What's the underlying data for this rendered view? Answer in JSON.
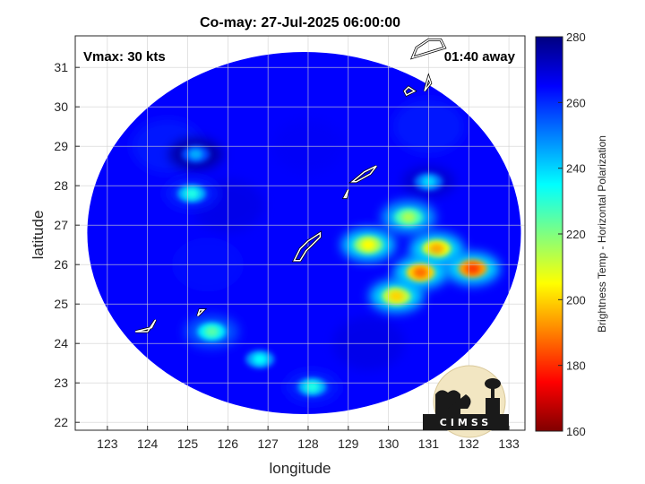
{
  "chart_data": {
    "type": "heatmap",
    "title": "Co-may: 27-Jul-2025 06:00:00",
    "xlabel": "longitude",
    "ylabel": "latitude",
    "xlim": [
      122.2,
      133.4
    ],
    "ylim": [
      21.8,
      31.8
    ],
    "xticks": [
      123,
      124,
      125,
      126,
      127,
      128,
      129,
      130,
      131,
      132,
      133
    ],
    "yticks": [
      22,
      23,
      24,
      25,
      26,
      27,
      28,
      29,
      30,
      31
    ],
    "grid": true,
    "annotations": {
      "left": "Vmax: 30 kts",
      "right": "01:40 away"
    },
    "colorbar": {
      "label": "Brightness Temp - Horizontal Polarization",
      "range": [
        160,
        280
      ],
      "ticks": [
        160,
        180,
        200,
        220,
        240,
        260,
        280
      ],
      "colormap": "jet",
      "colors": [
        "#800000",
        "#ff0000",
        "#ff8000",
        "#ffff00",
        "#80ff80",
        "#00ffff",
        "#0080ff",
        "#0000ff",
        "#000080"
      ]
    },
    "background_value": 265,
    "swath": {
      "center": [
        127.9,
        26.8
      ],
      "radius_deg": 5.4
    },
    "cold_features": [
      {
        "lon": 132.1,
        "lat": 25.9,
        "value": 182
      },
      {
        "lon": 130.8,
        "lat": 25.8,
        "value": 188
      },
      {
        "lon": 131.2,
        "lat": 26.4,
        "value": 195
      },
      {
        "lon": 130.2,
        "lat": 25.2,
        "value": 200
      },
      {
        "lon": 129.5,
        "lat": 26.5,
        "value": 205
      },
      {
        "lon": 130.5,
        "lat": 27.2,
        "value": 215
      },
      {
        "lon": 125.6,
        "lat": 24.3,
        "value": 225
      },
      {
        "lon": 126.8,
        "lat": 23.6,
        "value": 235
      },
      {
        "lon": 128.1,
        "lat": 22.9,
        "value": 232
      },
      {
        "lon": 131.0,
        "lat": 28.1,
        "value": 240
      },
      {
        "lon": 125.1,
        "lat": 27.8,
        "value": 232
      },
      {
        "lon": 125.2,
        "lat": 28.8,
        "value": 245
      }
    ],
    "coastlines": [
      {
        "name": "okinawa",
        "points": [
          [
            127.65,
            26.1
          ],
          [
            127.8,
            26.4
          ],
          [
            128.0,
            26.6
          ],
          [
            128.3,
            26.8
          ],
          [
            128.3,
            26.7
          ],
          [
            127.95,
            26.35
          ],
          [
            127.8,
            26.1
          ]
        ]
      },
      {
        "name": "amami",
        "points": [
          [
            129.1,
            28.1
          ],
          [
            129.4,
            28.35
          ],
          [
            129.7,
            28.5
          ],
          [
            129.55,
            28.3
          ],
          [
            129.2,
            28.1
          ]
        ]
      },
      {
        "name": "tokunoshima",
        "points": [
          [
            128.9,
            27.7
          ],
          [
            129.0,
            27.9
          ],
          [
            128.95,
            27.7
          ]
        ]
      },
      {
        "name": "miyako",
        "points": [
          [
            125.25,
            24.7
          ],
          [
            125.4,
            24.85
          ],
          [
            125.3,
            24.85
          ]
        ]
      },
      {
        "name": "ishigaki",
        "points": [
          [
            123.7,
            24.3
          ],
          [
            124.1,
            24.4
          ],
          [
            124.2,
            24.6
          ],
          [
            124.0,
            24.3
          ]
        ]
      },
      {
        "name": "yakushima",
        "points": [
          [
            130.45,
            30.3
          ],
          [
            130.65,
            30.4
          ],
          [
            130.5,
            30.5
          ],
          [
            130.4,
            30.4
          ]
        ]
      },
      {
        "name": "tanegashima",
        "points": [
          [
            130.9,
            30.4
          ],
          [
            131.0,
            30.75
          ],
          [
            131.05,
            30.6
          ]
        ]
      },
      {
        "name": "kyushu",
        "points": [
          [
            130.6,
            31.25
          ],
          [
            130.7,
            31.5
          ],
          [
            131.0,
            31.7
          ],
          [
            131.3,
            31.7
          ],
          [
            131.4,
            31.5
          ]
        ]
      }
    ]
  },
  "logo": {
    "text": "CIMSS"
  }
}
